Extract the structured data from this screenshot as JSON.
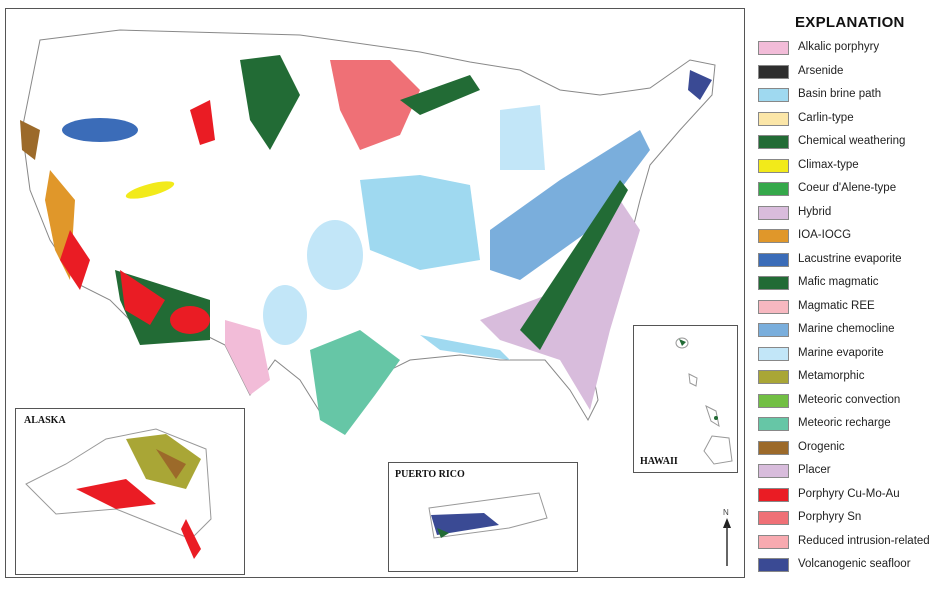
{
  "legend": {
    "title": "EXPLANATION",
    "items": [
      {
        "label": "Alkalic porphyry",
        "color": "#f2bcd8"
      },
      {
        "label": "Arsenide",
        "color": "#2e2e2e"
      },
      {
        "label": "Basin brine path",
        "color": "#9fd9f0"
      },
      {
        "label": "Carlin-type",
        "color": "#fbe6a8"
      },
      {
        "label": "Chemical weathering",
        "color": "#226b35"
      },
      {
        "label": "Climax-type",
        "color": "#f2ea1a"
      },
      {
        "label": "Coeur d'Alene-type",
        "color": "#35a84a"
      },
      {
        "label": "Hybrid",
        "color": "#d9bcdc"
      },
      {
        "label": "IOA-IOCG",
        "color": "#e0972a"
      },
      {
        "label": "Lacustrine evaporite",
        "color": "#3b6cb8"
      },
      {
        "label": "Mafic magmatic",
        "color": "#226b35"
      },
      {
        "label": "Magmatic REE",
        "color": "#f7b8c0"
      },
      {
        "label": "Marine chemocline",
        "color": "#7aaedc"
      },
      {
        "label": "Marine evaporite",
        "color": "#c2e6f8"
      },
      {
        "label": "Metamorphic",
        "color": "#a9a636"
      },
      {
        "label": "Meteoric convection",
        "color": "#72bf44"
      },
      {
        "label": "Meteoric recharge",
        "color": "#66c6a6"
      },
      {
        "label": "Orogenic",
        "color": "#9c6a2a"
      },
      {
        "label": "Placer",
        "color": "#d8bcdc"
      },
      {
        "label": "Porphyry Cu-Mo-Au",
        "color": "#ea1c24"
      },
      {
        "label": "Porphyry Sn",
        "color": "#ef7076"
      },
      {
        "label": "Reduced intrusion-related",
        "color": "#f8aab0"
      },
      {
        "label": "Volcanogenic seafloor",
        "color": "#3a4a94"
      }
    ]
  },
  "insets": {
    "alaska": "ALASKA",
    "puerto_rico": "PUERTO RICO",
    "hawaii": "HAWAII"
  },
  "north_arrow": "N"
}
